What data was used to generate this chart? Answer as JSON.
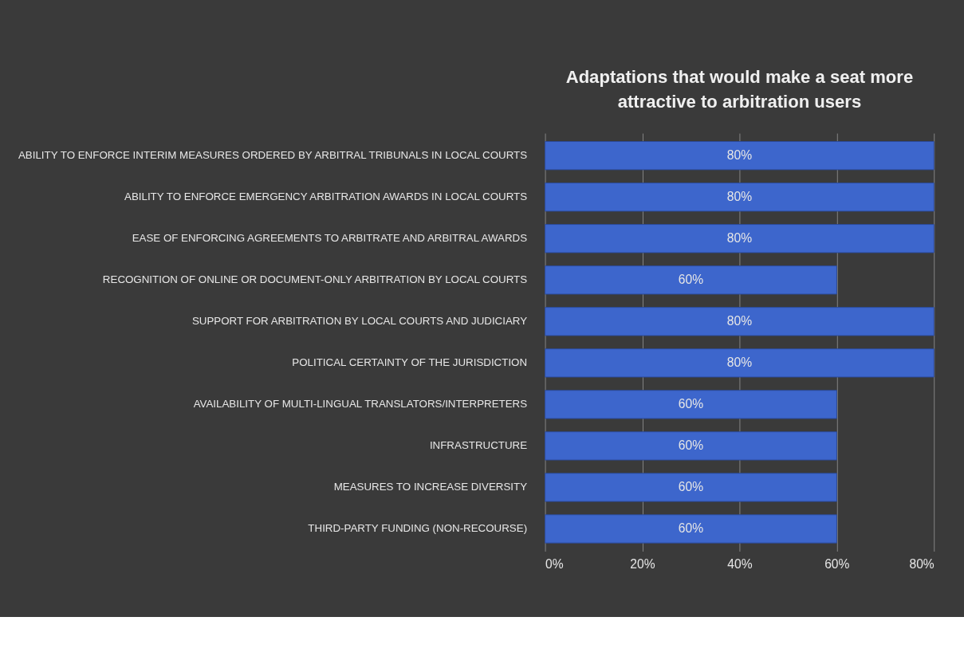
{
  "chart_data": {
    "type": "bar",
    "orientation": "horizontal",
    "title": "Adaptations that would make a seat more attractive to arbitration users",
    "categories": [
      "ABILITY TO ENFORCE INTERIM MEASURES ORDERED BY ARBITRAL TRIBUNALS IN LOCAL COURTS",
      "ABILITY TO ENFORCE EMERGENCY ARBITRATION AWARDS IN LOCAL COURTS",
      "EASE OF ENFORCING AGREEMENTS TO ARBITRATE AND ARBITRAL AWARDS",
      "RECOGNITION OF ONLINE OR DOCUMENT-ONLY ARBITRATION BY LOCAL COURTS",
      "SUPPORT FOR ARBITRATION BY LOCAL COURTS AND JUDICIARY",
      "POLITICAL CERTAINTY OF THE JURISDICTION",
      "AVAILABILITY OF MULTI-LINGUAL TRANSLATORS/INTERPRETERS",
      "INFRASTRUCTURE",
      "MEASURES TO INCREASE DIVERSITY",
      "THIRD-PARTY FUNDING (NON-RECOURSE)"
    ],
    "values": [
      80,
      80,
      80,
      60,
      80,
      80,
      60,
      60,
      60,
      60
    ],
    "value_labels": [
      "80%",
      "80%",
      "80%",
      "60%",
      "80%",
      "80%",
      "60%",
      "60%",
      "60%",
      "60%"
    ],
    "color": "#3d66cc",
    "xlim": [
      0,
      80
    ],
    "xticks": [
      {
        "value": 0,
        "label": "0%"
      },
      {
        "value": 20,
        "label": "20%"
      },
      {
        "value": 40,
        "label": "40%"
      },
      {
        "value": 60,
        "label": "60%"
      },
      {
        "value": 80,
        "label": "80%"
      }
    ],
    "grid": "x"
  }
}
